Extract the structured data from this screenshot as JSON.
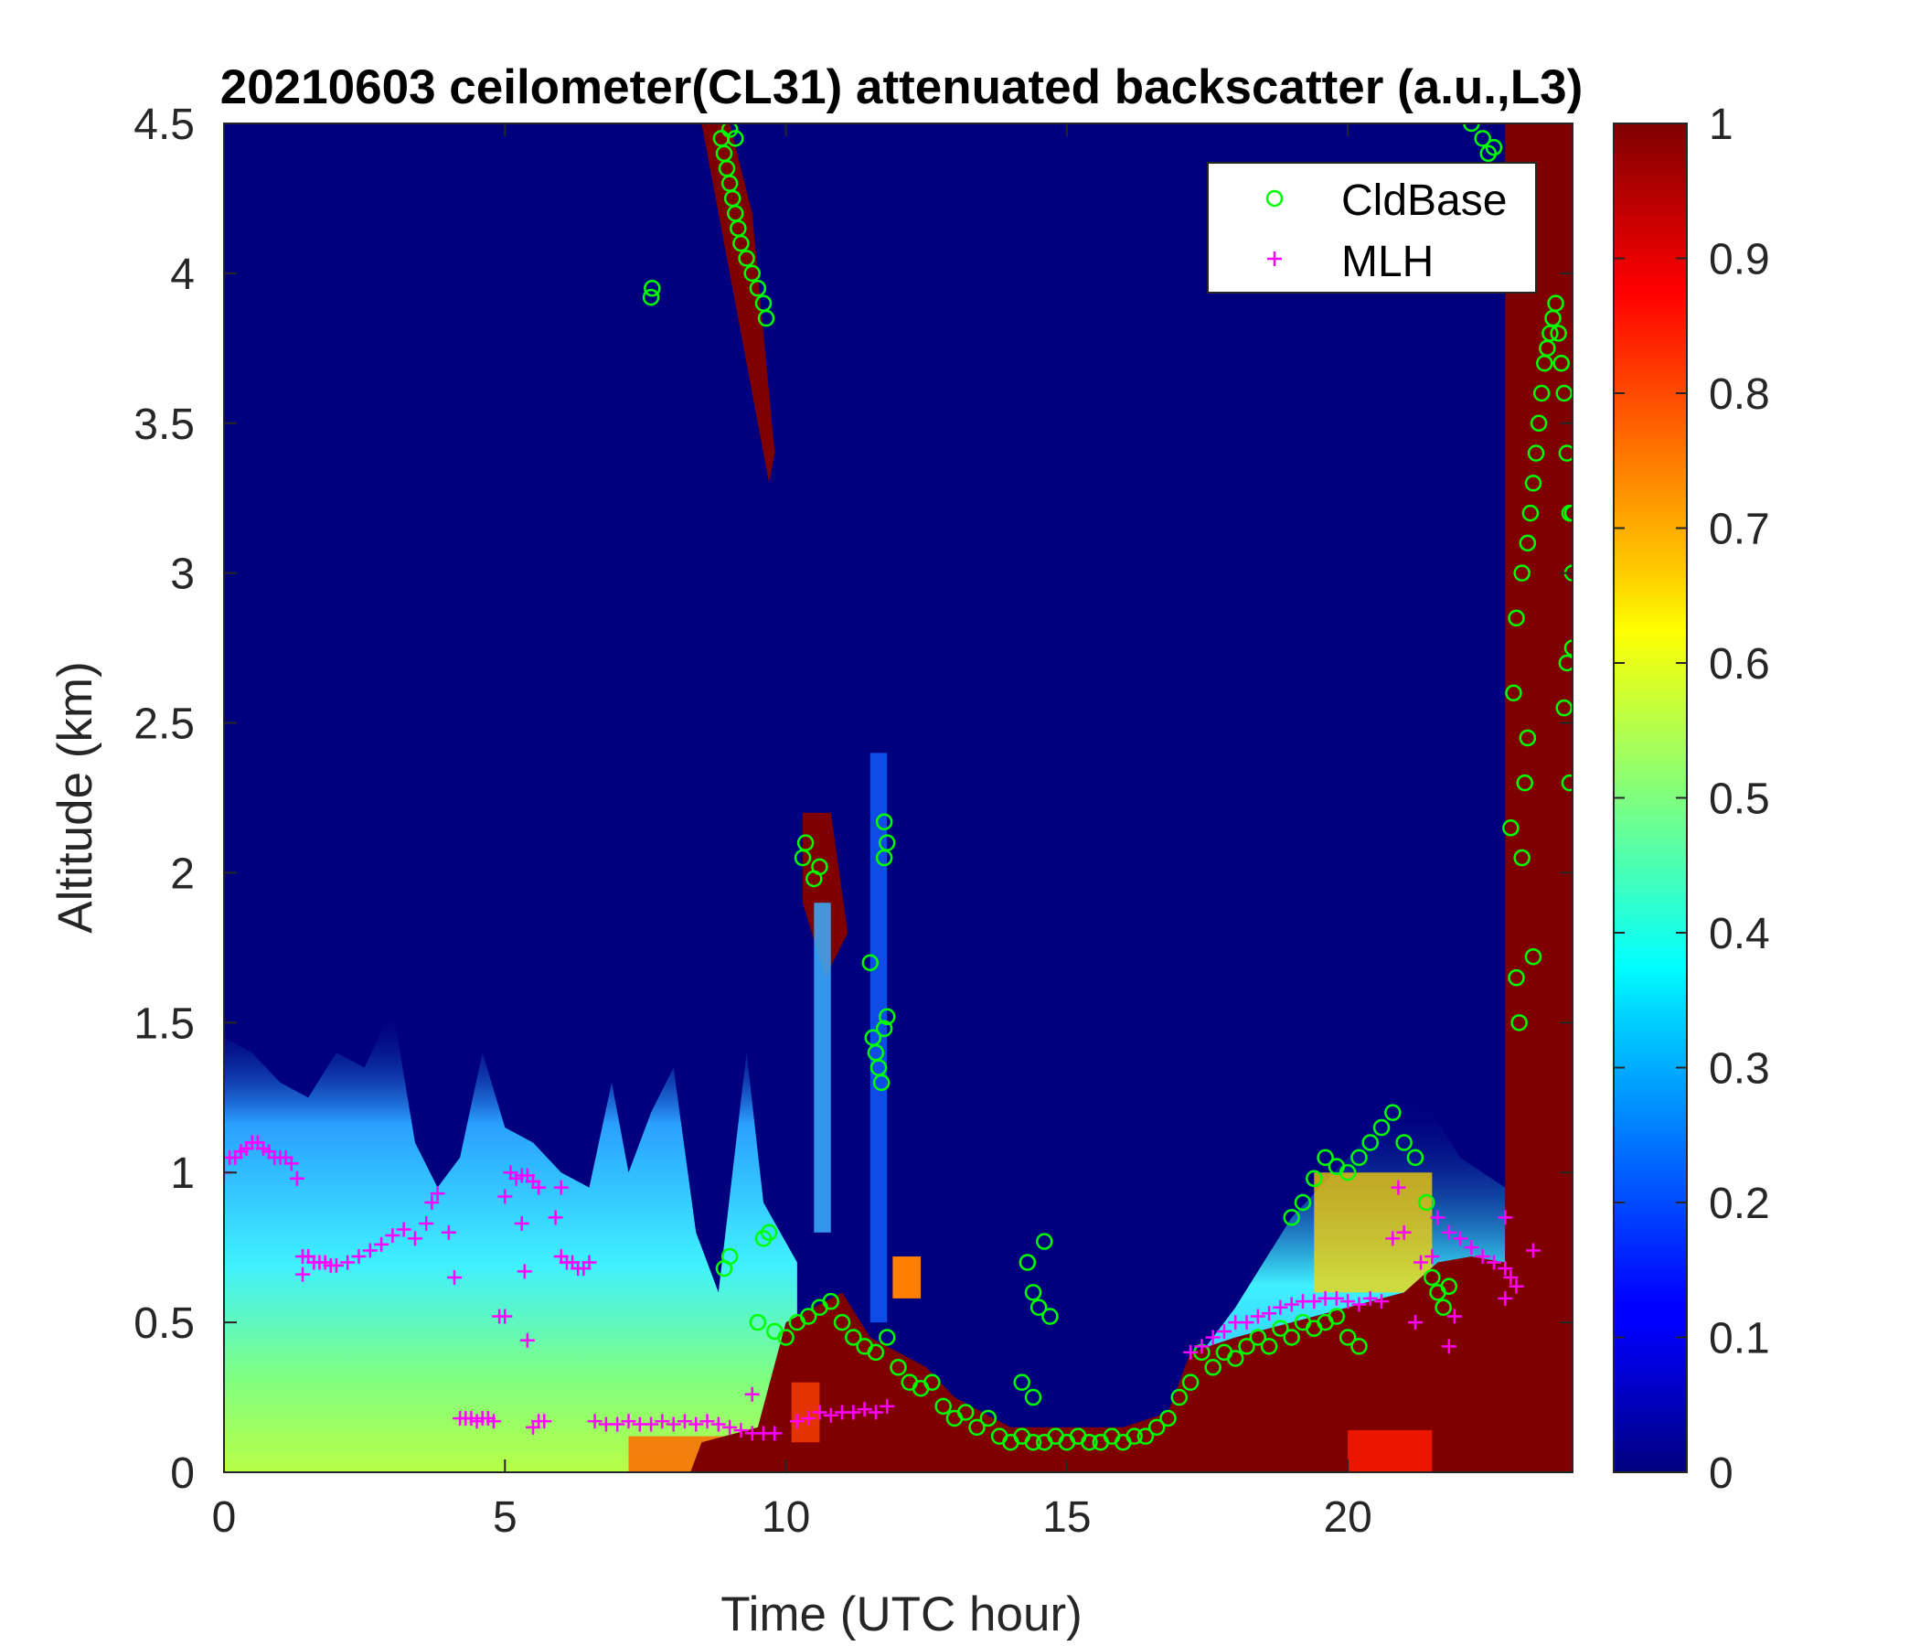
{
  "chart_data": {
    "type": "heatmap",
    "title": "20210603 ceilometer(CL31) attenuated backscatter (a.u.,L3)",
    "xlabel": "Time (UTC hour)",
    "ylabel": "Altitude (km)",
    "xlim": [
      0,
      24
    ],
    "ylim": [
      0,
      4.5
    ],
    "xticks": [
      0,
      5,
      10,
      15,
      20
    ],
    "xtick_labels": [
      "0",
      "5",
      "10",
      "15",
      "20"
    ],
    "yticks": [
      0,
      0.5,
      1,
      1.5,
      2,
      2.5,
      3,
      3.5,
      4,
      4.5
    ],
    "ytick_labels": [
      "0",
      "0.5",
      "1",
      "1.5",
      "2",
      "2.5",
      "3",
      "3.5",
      "4",
      "4.5"
    ],
    "colorbar": {
      "colormap": "jet",
      "range": [
        0,
        1
      ],
      "ticks": [
        0,
        0.1,
        0.2,
        0.3,
        0.4,
        0.5,
        0.6,
        0.7,
        0.8,
        0.9,
        1
      ],
      "tick_labels": [
        "0",
        "0.1",
        "0.2",
        "0.3",
        "0.4",
        "0.5",
        "0.6",
        "0.7",
        "0.8",
        "0.9",
        "1"
      ]
    },
    "legend": {
      "placement": "top-right",
      "entries": [
        "CldBase",
        "MLH"
      ]
    },
    "series": [
      {
        "name": "CldBase",
        "marker": "circle",
        "color": "#00ff00",
        "points": [
          [
            7.6,
            3.92
          ],
          [
            7.62,
            3.95
          ],
          [
            8.85,
            4.45
          ],
          [
            8.9,
            4.4
          ],
          [
            8.95,
            4.35
          ],
          [
            9.0,
            4.3
          ],
          [
            9.05,
            4.25
          ],
          [
            9.1,
            4.2
          ],
          [
            9.15,
            4.15
          ],
          [
            9.2,
            4.1
          ],
          [
            9.3,
            4.05
          ],
          [
            9.4,
            4.0
          ],
          [
            9.5,
            3.95
          ],
          [
            9.6,
            3.9
          ],
          [
            9.65,
            3.85
          ],
          [
            9.0,
            4.48
          ],
          [
            9.1,
            4.45
          ],
          [
            8.9,
            0.68
          ],
          [
            9.0,
            0.72
          ],
          [
            9.6,
            0.78
          ],
          [
            9.7,
            0.8
          ],
          [
            9.5,
            0.5
          ],
          [
            9.8,
            0.47
          ],
          [
            10.0,
            0.45
          ],
          [
            10.2,
            0.5
          ],
          [
            10.4,
            0.52
          ],
          [
            10.6,
            0.55
          ],
          [
            10.8,
            0.57
          ],
          [
            11.0,
            0.5
          ],
          [
            11.2,
            0.45
          ],
          [
            11.4,
            0.42
          ],
          [
            11.6,
            0.4
          ],
          [
            11.8,
            0.45
          ],
          [
            12.0,
            0.35
          ],
          [
            12.2,
            0.3
          ],
          [
            12.4,
            0.28
          ],
          [
            12.6,
            0.3
          ],
          [
            12.8,
            0.22
          ],
          [
            13.0,
            0.18
          ],
          [
            13.2,
            0.2
          ],
          [
            13.4,
            0.15
          ],
          [
            13.6,
            0.18
          ],
          [
            13.8,
            0.12
          ],
          [
            14.0,
            0.1
          ],
          [
            14.2,
            0.12
          ],
          [
            14.4,
            0.1
          ],
          [
            14.6,
            0.1
          ],
          [
            14.8,
            0.12
          ],
          [
            15.0,
            0.1
          ],
          [
            15.2,
            0.12
          ],
          [
            15.4,
            0.1
          ],
          [
            15.6,
            0.1
          ],
          [
            15.8,
            0.12
          ],
          [
            16.0,
            0.1
          ],
          [
            16.2,
            0.12
          ],
          [
            16.4,
            0.12
          ],
          [
            16.6,
            0.15
          ],
          [
            16.8,
            0.18
          ],
          [
            17.0,
            0.25
          ],
          [
            17.2,
            0.3
          ],
          [
            17.4,
            0.4
          ],
          [
            17.6,
            0.35
          ],
          [
            17.8,
            0.4
          ],
          [
            18.0,
            0.38
          ],
          [
            18.2,
            0.42
          ],
          [
            18.4,
            0.45
          ],
          [
            18.6,
            0.42
          ],
          [
            18.8,
            0.48
          ],
          [
            19.0,
            0.45
          ],
          [
            19.2,
            0.5
          ],
          [
            19.4,
            0.48
          ],
          [
            19.6,
            0.5
          ],
          [
            19.8,
            0.52
          ],
          [
            20.0,
            0.45
          ],
          [
            20.2,
            0.42
          ],
          [
            10.3,
            2.05
          ],
          [
            10.35,
            2.1
          ],
          [
            10.5,
            1.98
          ],
          [
            10.6,
            2.02
          ],
          [
            11.5,
            1.7
          ],
          [
            11.55,
            1.45
          ],
          [
            11.6,
            1.4
          ],
          [
            11.65,
            1.35
          ],
          [
            11.7,
            1.3
          ],
          [
            11.75,
            1.48
          ],
          [
            11.8,
            1.52
          ],
          [
            11.75,
            2.05
          ],
          [
            11.8,
            2.1
          ],
          [
            11.75,
            2.17
          ],
          [
            14.3,
            0.7
          ],
          [
            14.4,
            0.6
          ],
          [
            14.5,
            0.55
          ],
          [
            14.6,
            0.77
          ],
          [
            14.7,
            0.52
          ],
          [
            14.2,
            0.3
          ],
          [
            14.4,
            0.25
          ],
          [
            19.0,
            0.85
          ],
          [
            19.2,
            0.9
          ],
          [
            19.4,
            0.98
          ],
          [
            19.6,
            1.05
          ],
          [
            19.8,
            1.02
          ],
          [
            20.0,
            1.0
          ],
          [
            20.2,
            1.05
          ],
          [
            20.4,
            1.1
          ],
          [
            20.6,
            1.15
          ],
          [
            20.8,
            1.2
          ],
          [
            21.0,
            1.1
          ],
          [
            21.2,
            1.05
          ],
          [
            21.4,
            0.9
          ],
          [
            21.5,
            0.65
          ],
          [
            21.6,
            0.6
          ],
          [
            21.7,
            0.55
          ],
          [
            21.8,
            0.62
          ],
          [
            22.2,
            4.5
          ],
          [
            22.4,
            4.45
          ],
          [
            22.5,
            4.4
          ],
          [
            22.6,
            4.42
          ],
          [
            22.9,
            2.15
          ],
          [
            22.95,
            2.6
          ],
          [
            23.0,
            1.65
          ],
          [
            23.05,
            1.5
          ],
          [
            23.1,
            2.05
          ],
          [
            23.15,
            2.3
          ],
          [
            23.2,
            2.45
          ],
          [
            23.3,
            1.72
          ],
          [
            23.0,
            2.85
          ],
          [
            23.1,
            3.0
          ],
          [
            23.2,
            3.1
          ],
          [
            23.25,
            3.2
          ],
          [
            23.3,
            3.3
          ],
          [
            23.35,
            3.4
          ],
          [
            23.4,
            3.5
          ],
          [
            23.45,
            3.6
          ],
          [
            23.5,
            3.7
          ],
          [
            23.55,
            3.75
          ],
          [
            23.6,
            3.8
          ],
          [
            23.65,
            3.85
          ],
          [
            23.7,
            3.9
          ],
          [
            23.75,
            3.8
          ],
          [
            23.8,
            3.7
          ],
          [
            23.85,
            3.6
          ],
          [
            23.9,
            3.4
          ],
          [
            23.95,
            3.2
          ],
          [
            24.0,
            3.0
          ],
          [
            23.9,
            2.7
          ],
          [
            23.95,
            2.3
          ],
          [
            24.0,
            2.75
          ],
          [
            23.85,
            2.55
          ],
          [
            24.0,
            3.2
          ]
        ]
      },
      {
        "name": "MLH",
        "marker": "plus",
        "color": "#ff00ff",
        "points": [
          [
            0.0,
            1.0
          ],
          [
            0.1,
            1.05
          ],
          [
            0.2,
            1.05
          ],
          [
            0.3,
            1.07
          ],
          [
            0.4,
            1.08
          ],
          [
            0.5,
            1.1
          ],
          [
            0.6,
            1.1
          ],
          [
            0.7,
            1.08
          ],
          [
            0.8,
            1.07
          ],
          [
            0.9,
            1.05
          ],
          [
            1.0,
            1.05
          ],
          [
            1.1,
            1.05
          ],
          [
            1.2,
            1.03
          ],
          [
            1.3,
            0.98
          ],
          [
            1.4,
            0.72
          ],
          [
            1.5,
            0.72
          ],
          [
            1.6,
            0.7
          ],
          [
            1.7,
            0.7
          ],
          [
            1.8,
            0.7
          ],
          [
            1.9,
            0.69
          ],
          [
            2.0,
            0.69
          ],
          [
            2.2,
            0.7
          ],
          [
            2.4,
            0.72
          ],
          [
            2.6,
            0.74
          ],
          [
            2.8,
            0.76
          ],
          [
            3.0,
            0.79
          ],
          [
            3.2,
            0.81
          ],
          [
            3.4,
            0.78
          ],
          [
            3.6,
            0.83
          ],
          [
            3.7,
            0.9
          ],
          [
            3.8,
            0.93
          ],
          [
            4.0,
            0.8
          ],
          [
            4.1,
            0.65
          ],
          [
            1.4,
            0.66
          ],
          [
            4.2,
            0.18
          ],
          [
            4.3,
            0.18
          ],
          [
            4.4,
            0.18
          ],
          [
            4.5,
            0.17
          ],
          [
            4.6,
            0.18
          ],
          [
            4.7,
            0.18
          ],
          [
            4.8,
            0.17
          ],
          [
            4.9,
            0.52
          ],
          [
            5.0,
            0.52
          ],
          [
            5.0,
            0.92
          ],
          [
            5.1,
            1.0
          ],
          [
            5.2,
            0.98
          ],
          [
            5.3,
            0.99
          ],
          [
            5.4,
            0.99
          ],
          [
            5.5,
            0.97
          ],
          [
            5.6,
            0.95
          ],
          [
            5.3,
            0.83
          ],
          [
            5.35,
            0.67
          ],
          [
            5.4,
            0.44
          ],
          [
            5.9,
            0.85
          ],
          [
            6.0,
            0.95
          ],
          [
            5.5,
            0.15
          ],
          [
            5.6,
            0.17
          ],
          [
            5.7,
            0.17
          ],
          [
            6.0,
            0.72
          ],
          [
            6.1,
            0.7
          ],
          [
            6.2,
            0.7
          ],
          [
            6.3,
            0.68
          ],
          [
            6.4,
            0.68
          ],
          [
            6.5,
            0.7
          ],
          [
            6.6,
            0.17
          ],
          [
            6.8,
            0.16
          ],
          [
            7.0,
            0.16
          ],
          [
            7.2,
            0.17
          ],
          [
            7.4,
            0.16
          ],
          [
            7.6,
            0.16
          ],
          [
            7.8,
            0.17
          ],
          [
            8.0,
            0.16
          ],
          [
            8.2,
            0.17
          ],
          [
            8.4,
            0.16
          ],
          [
            8.6,
            0.17
          ],
          [
            8.8,
            0.16
          ],
          [
            9.0,
            0.15
          ],
          [
            9.2,
            0.14
          ],
          [
            9.4,
            0.13
          ],
          [
            9.6,
            0.13
          ],
          [
            9.8,
            0.13
          ],
          [
            9.4,
            0.26
          ],
          [
            10.2,
            0.17
          ],
          [
            10.4,
            0.18
          ],
          [
            10.6,
            0.2
          ],
          [
            10.8,
            0.19
          ],
          [
            11.0,
            0.2
          ],
          [
            11.2,
            0.2
          ],
          [
            11.4,
            0.21
          ],
          [
            11.6,
            0.2
          ],
          [
            11.8,
            0.22
          ],
          [
            17.2,
            0.4
          ],
          [
            17.4,
            0.42
          ],
          [
            17.6,
            0.45
          ],
          [
            17.8,
            0.47
          ],
          [
            18.0,
            0.5
          ],
          [
            18.2,
            0.5
          ],
          [
            18.4,
            0.52
          ],
          [
            18.6,
            0.53
          ],
          [
            18.8,
            0.55
          ],
          [
            19.0,
            0.56
          ],
          [
            19.2,
            0.57
          ],
          [
            19.4,
            0.57
          ],
          [
            19.6,
            0.58
          ],
          [
            19.8,
            0.58
          ],
          [
            20.0,
            0.57
          ],
          [
            20.2,
            0.56
          ],
          [
            20.4,
            0.58
          ],
          [
            20.6,
            0.57
          ],
          [
            20.8,
            0.78
          ],
          [
            21.0,
            0.8
          ],
          [
            20.9,
            0.95
          ],
          [
            21.3,
            0.7
          ],
          [
            21.5,
            0.72
          ],
          [
            21.6,
            0.85
          ],
          [
            21.8,
            0.8
          ],
          [
            22.0,
            0.78
          ],
          [
            22.2,
            0.75
          ],
          [
            22.4,
            0.72
          ],
          [
            22.6,
            0.7
          ],
          [
            22.8,
            0.68
          ],
          [
            22.9,
            0.65
          ],
          [
            21.2,
            0.5
          ],
          [
            21.9,
            0.52
          ],
          [
            21.8,
            0.42
          ],
          [
            22.8,
            0.58
          ],
          [
            23.0,
            0.62
          ],
          [
            23.3,
            0.74
          ],
          [
            22.8,
            0.85
          ]
        ]
      }
    ]
  }
}
